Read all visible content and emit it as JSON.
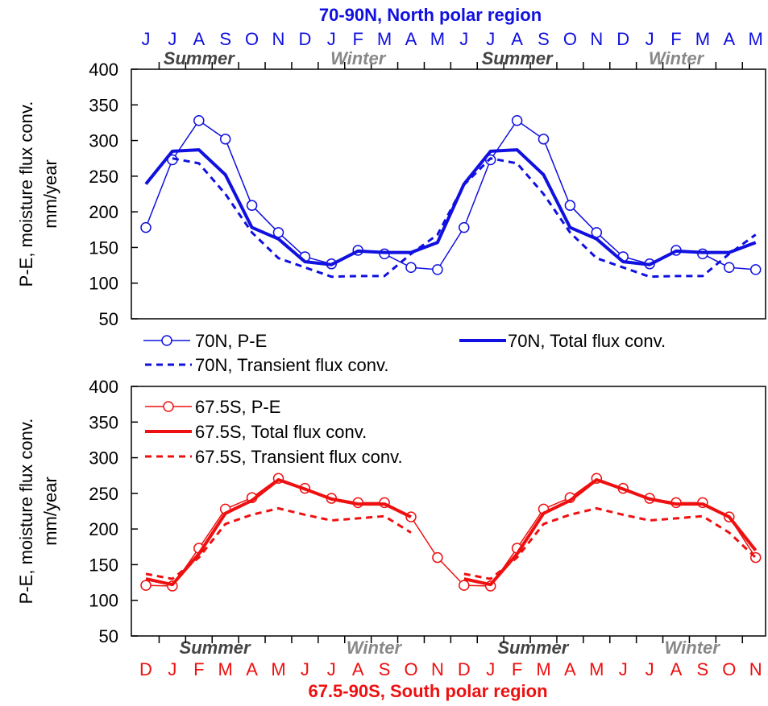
{
  "chart_data": [
    {
      "type": "line",
      "title": "70-90N, North polar region",
      "color": "#1010e0",
      "season_color_summer": "#444444",
      "season_color_winter": "#888888",
      "month_labels": [
        "J",
        "J",
        "A",
        "S",
        "O",
        "N",
        "D",
        "J",
        "F",
        "M",
        "A",
        "M",
        "J",
        "J",
        "A",
        "S",
        "O",
        "N",
        "D",
        "J",
        "F",
        "M",
        "A",
        "M"
      ],
      "season_labels": {
        "summer": "Summer",
        "winter": "Winter"
      },
      "ylabel_line1": "P-E, moisture flux conv.",
      "ylabel_line2": "mm/year",
      "ylim": [
        50,
        400
      ],
      "yticks": [
        "50",
        "100",
        "150",
        "200",
        "250",
        "300",
        "350",
        "400"
      ],
      "legend": [
        "70N, P-E",
        "70N, Total flux conv.",
        "70N, Transient flux conv."
      ],
      "series": [
        {
          "name": "70N, P-E",
          "style": "thin-circle",
          "values": [
            178,
            273,
            328,
            302,
            209,
            171,
            137,
            127,
            146,
            141,
            122,
            119,
            178,
            273,
            328,
            302,
            209,
            171,
            137,
            127,
            146,
            141,
            122,
            119
          ]
        },
        {
          "name": "70N, Total flux conv.",
          "style": "thick",
          "values": [
            239,
            285,
            287,
            252,
            178,
            162,
            130,
            126,
            145,
            143,
            143,
            157,
            239,
            285,
            287,
            252,
            178,
            162,
            130,
            126,
            145,
            143,
            143,
            157
          ]
        },
        {
          "name": "70N, Transient flux conv.",
          "style": "dashed",
          "values": [
            null,
            275,
            268,
            225,
            171,
            135,
            122,
            109,
            110,
            110,
            141,
            168,
            238,
            275,
            268,
            225,
            171,
            135,
            122,
            109,
            110,
            110,
            141,
            168
          ]
        }
      ]
    },
    {
      "type": "line",
      "title": "67.5-90S, South polar region",
      "color": "#ee1010",
      "season_color_summer": "#444444",
      "season_color_winter": "#888888",
      "month_labels": [
        "D",
        "J",
        "F",
        "M",
        "A",
        "M",
        "J",
        "J",
        "A",
        "S",
        "O",
        "N",
        "D",
        "J",
        "F",
        "M",
        "A",
        "M",
        "J",
        "J",
        "A",
        "S",
        "O",
        "N"
      ],
      "season_labels": {
        "summer": "Summer",
        "winter": "Winter"
      },
      "ylabel_line1": "P-E, moisture flux conv.",
      "ylabel_line2": "mm/year",
      "ylim": [
        50,
        400
      ],
      "yticks": [
        "50",
        "100",
        "150",
        "200",
        "250",
        "300",
        "350",
        "400"
      ],
      "legend": [
        "67.5S, P-E",
        "67.5S, Total flux conv.",
        "67.5S, Transient flux conv."
      ],
      "series": [
        {
          "name": "67.5S, P-E",
          "style": "thin-circle",
          "values": [
            121,
            120,
            173,
            228,
            244,
            271,
            257,
            243,
            237,
            237,
            217,
            160,
            121,
            120,
            173,
            228,
            244,
            271,
            257,
            243,
            237,
            237,
            217,
            160
          ]
        },
        {
          "name": "67.5S, Total flux conv.",
          "style": "thick",
          "values": [
            130,
            122,
            165,
            222,
            240,
            269,
            256,
            242,
            235,
            235,
            217,
            null,
            130,
            122,
            165,
            222,
            240,
            269,
            256,
            242,
            235,
            235,
            217,
            170
          ]
        },
        {
          "name": "67.5S, Transient flux conv.",
          "style": "dashed",
          "values": [
            137,
            130,
            160,
            207,
            220,
            229,
            220,
            212,
            215,
            218,
            195,
            null,
            137,
            130,
            160,
            207,
            220,
            229,
            220,
            212,
            215,
            218,
            195,
            160
          ]
        }
      ]
    }
  ]
}
